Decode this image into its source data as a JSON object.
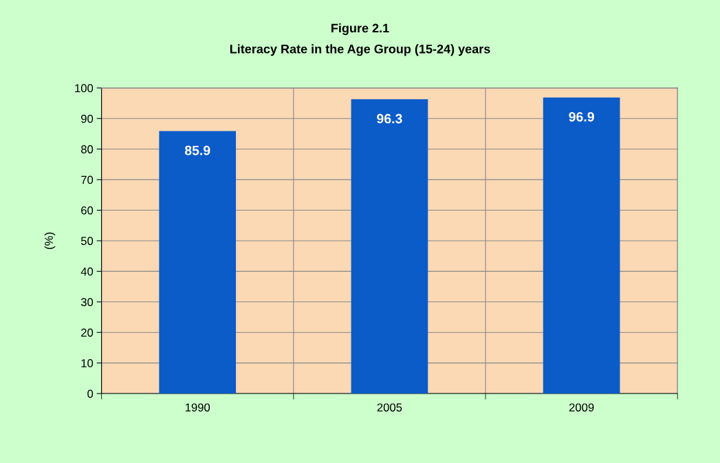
{
  "chart_data": {
    "type": "bar",
    "title": "Figure 2.1",
    "subtitle": "Literacy Rate in the Age Group (15-24) years",
    "ylabel": "(%)",
    "categories": [
      "1990",
      "2005",
      "2009"
    ],
    "values": [
      85.9,
      96.3,
      96.9
    ],
    "color": "#0b5bc8",
    "ylim": [
      0,
      100
    ],
    "yticks": [
      0,
      10,
      20,
      30,
      40,
      50,
      60,
      70,
      80,
      90,
      100
    ],
    "grid": true,
    "data_labels": true
  }
}
